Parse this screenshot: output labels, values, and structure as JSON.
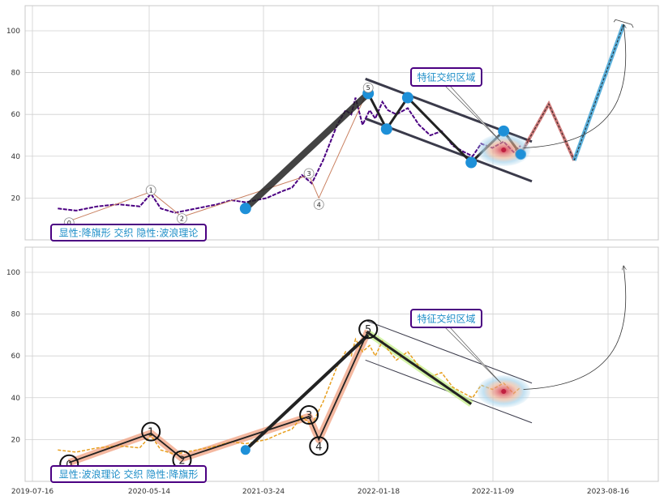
{
  "chart_data": [
    {
      "type": "line",
      "ylim": [
        0,
        112
      ],
      "yticks": [
        20,
        40,
        60,
        80,
        100
      ],
      "grid": true,
      "annotation": "特征交织区域",
      "caption": "显性:降旗形 交织 隐性:波浪理论",
      "wave_labels": [
        "0",
        "1",
        "2",
        "3",
        "4",
        "5"
      ],
      "series": [
        {
          "values": [
            [
              2019.72,
              15
            ],
            [
              2019.85,
              14
            ],
            [
              2020.0,
              16
            ],
            [
              2020.15,
              17
            ],
            [
              2020.3,
              16
            ],
            [
              2020.38,
              22
            ],
            [
              2020.45,
              15
            ],
            [
              2020.55,
              13
            ],
            [
              2020.7,
              15
            ],
            [
              2020.85,
              17
            ],
            [
              2020.95,
              19
            ],
            [
              2021.05,
              18
            ],
            [
              2021.2,
              20
            ],
            [
              2021.3,
              23
            ],
            [
              2021.38,
              25
            ],
            [
              2021.45,
              31
            ],
            [
              2021.52,
              27
            ],
            [
              2021.6,
              38
            ],
            [
              2021.7,
              55
            ],
            [
              2021.76,
              62
            ],
            [
              2021.8,
              60
            ],
            [
              2021.83,
              68
            ],
            [
              2021.88,
              55
            ],
            [
              2021.93,
              62
            ],
            [
              2021.97,
              58
            ],
            [
              2022.02,
              66
            ],
            [
              2022.06,
              62
            ],
            [
              2022.12,
              60
            ],
            [
              2022.2,
              63
            ],
            [
              2022.28,
              55
            ],
            [
              2022.36,
              50
            ],
            [
              2022.44,
              52
            ],
            [
              2022.52,
              45
            ],
            [
              2022.6,
              42
            ],
            [
              2022.66,
              40
            ],
            [
              2022.72,
              46
            ],
            [
              2022.8,
              44
            ],
            [
              2022.88,
              47
            ],
            [
              2022.95,
              42
            ],
            [
              2023.0,
              45
            ]
          ]
        }
      ],
      "color_main": "#4b0082",
      "color_accent": "#1e90d8"
    },
    {
      "type": "line",
      "ylim": [
        0,
        112
      ],
      "yticks": [
        20,
        40,
        60,
        80,
        100
      ],
      "xticks": [
        "2019-07-16",
        "2020-05-14",
        "2021-03-24",
        "2022-01-18",
        "2022-11-09",
        "2023-08-16"
      ],
      "grid": true,
      "annotation": "特征交织区域",
      "caption": "显性:波浪理论 交织 隐性:降旗形",
      "wave_labels": [
        "0",
        "1",
        "2",
        "3",
        "4",
        "5"
      ],
      "series": [
        {
          "values": [
            [
              2019.72,
              15
            ],
            [
              2019.85,
              14
            ],
            [
              2020.0,
              16
            ],
            [
              2020.15,
              17
            ],
            [
              2020.3,
              16
            ],
            [
              2020.38,
              22
            ],
            [
              2020.45,
              15
            ],
            [
              2020.55,
              13
            ],
            [
              2020.7,
              15
            ],
            [
              2020.85,
              17
            ],
            [
              2020.95,
              19
            ],
            [
              2021.05,
              18
            ],
            [
              2021.2,
              20
            ],
            [
              2021.3,
              23
            ],
            [
              2021.38,
              25
            ],
            [
              2021.45,
              31
            ],
            [
              2021.52,
              27
            ],
            [
              2021.6,
              38
            ],
            [
              2021.7,
              55
            ],
            [
              2021.76,
              62
            ],
            [
              2021.8,
              60
            ],
            [
              2021.83,
              68
            ],
            [
              2021.88,
              62
            ],
            [
              2021.93,
              65
            ],
            [
              2021.97,
              60
            ],
            [
              2022.02,
              67
            ],
            [
              2022.06,
              63
            ],
            [
              2022.12,
              58
            ],
            [
              2022.2,
              62
            ],
            [
              2022.28,
              55
            ],
            [
              2022.36,
              50
            ],
            [
              2022.44,
              52
            ],
            [
              2022.52,
              45
            ],
            [
              2022.6,
              42
            ],
            [
              2022.66,
              40
            ],
            [
              2022.72,
              46
            ],
            [
              2022.8,
              44
            ],
            [
              2022.88,
              47
            ],
            [
              2022.95,
              42
            ],
            [
              2023.0,
              45
            ]
          ]
        }
      ],
      "color_main": "#e8a020",
      "color_accent": "#1e90d8"
    }
  ]
}
